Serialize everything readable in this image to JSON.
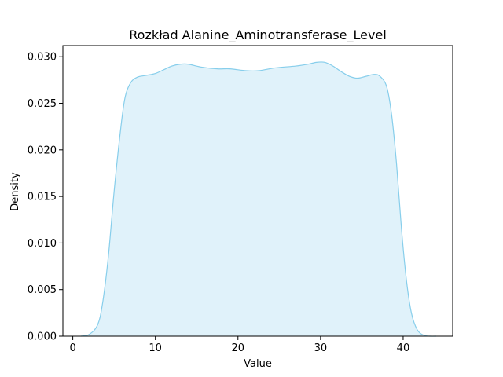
{
  "chart_data": {
    "type": "area",
    "title": "Rozkład Alanine_Aminotransferase_Level",
    "xlabel": "Value",
    "ylabel": "Density",
    "xlim": [
      -1.2,
      46.0
    ],
    "ylim": [
      0,
      0.0312
    ],
    "xticks": [
      0,
      10,
      20,
      30,
      40
    ],
    "xtick_labels": [
      "0",
      "10",
      "20",
      "30",
      "40"
    ],
    "yticks": [
      0,
      0.005,
      0.01,
      0.015,
      0.02,
      0.025,
      0.03
    ],
    "ytick_labels": [
      "0.000",
      "0.005",
      "0.010",
      "0.015",
      "0.020",
      "0.025",
      "0.030"
    ],
    "grid": false,
    "legend": "none",
    "colors": {
      "line": "#87ceeb",
      "fill": "#87ceeb",
      "fill_opacity": 0.26,
      "axes": "#000000"
    },
    "series": [
      {
        "x": [
          1.0,
          2.0,
          3.0,
          3.6,
          4.3,
          5.0,
          5.7,
          6.3,
          7.0,
          7.8,
          8.9,
          10.0,
          11.0,
          12.0,
          13.0,
          14.0,
          15.5,
          17.5,
          19.0,
          21.0,
          22.5,
          24.5,
          27.0,
          28.5,
          29.5,
          30.5,
          31.5,
          32.5,
          33.5,
          34.5,
          35.5,
          36.5,
          37.2,
          38.0,
          38.6,
          39.2,
          39.8,
          40.4,
          41.0,
          41.7,
          42.5,
          43.3,
          44.0
        ],
        "y": [
          0.0,
          0.0002,
          0.0012,
          0.0035,
          0.0085,
          0.0155,
          0.0215,
          0.0255,
          0.0272,
          0.0278,
          0.028,
          0.0282,
          0.0286,
          0.029,
          0.0292,
          0.0292,
          0.0289,
          0.0287,
          0.0287,
          0.0285,
          0.0285,
          0.0288,
          0.029,
          0.0292,
          0.0294,
          0.0294,
          0.029,
          0.0284,
          0.0279,
          0.0277,
          0.0279,
          0.0281,
          0.0279,
          0.0268,
          0.0238,
          0.0185,
          0.0115,
          0.006,
          0.0025,
          0.0007,
          0.0001,
          0.0,
          0.0
        ]
      }
    ]
  }
}
